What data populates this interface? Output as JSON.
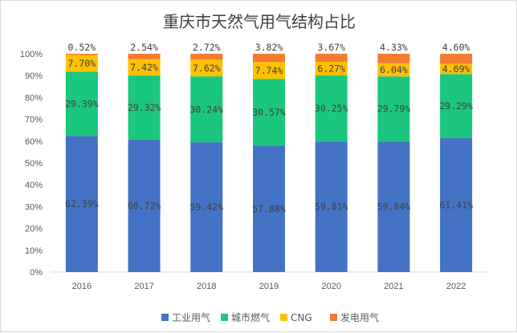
{
  "chart_data": {
    "type": "bar",
    "stacked": true,
    "title": "重庆市天然气用气结构占比",
    "categories": [
      "2016",
      "2017",
      "2018",
      "2019",
      "2020",
      "2021",
      "2022"
    ],
    "series": [
      {
        "name": "工业用气",
        "color": "#4472C4",
        "values": [
          62.39,
          60.72,
          59.42,
          57.88,
          59.81,
          59.84,
          61.41
        ],
        "labels": [
          "62.39%",
          "60.72%",
          "59.42%",
          "57.88%",
          "59.81%",
          "59.84%",
          "61.41%"
        ]
      },
      {
        "name": "城市燃气",
        "color": "#1AC77D",
        "values": [
          29.39,
          29.32,
          30.24,
          30.57,
          30.25,
          29.79,
          29.29
        ],
        "labels": [
          "29.39%",
          "29.32%",
          "30.24%",
          "30.57%",
          "30.25%",
          "29.79%",
          "29.29%"
        ]
      },
      {
        "name": "CNG",
        "color": "#FFC000",
        "values": [
          7.7,
          7.42,
          7.62,
          7.74,
          6.27,
          6.04,
          4.69
        ],
        "labels": [
          "7.70%",
          "7.42%",
          "7.62%",
          "7.74%",
          "6.27%",
          "6.04%",
          "4.69%"
        ]
      },
      {
        "name": "发电用气",
        "color": "#F47B30",
        "values": [
          0.52,
          2.54,
          2.72,
          3.82,
          3.67,
          4.33,
          4.6
        ],
        "labels": [
          "0.52%",
          "2.54%",
          "2.72%",
          "3.82%",
          "3.67%",
          "4.33%",
          "4.60%"
        ]
      }
    ],
    "yticks": [
      "0%",
      "10%",
      "20%",
      "30%",
      "40%",
      "50%",
      "60%",
      "70%",
      "80%",
      "90%",
      "100%"
    ],
    "ylim": [
      0,
      100
    ],
    "legend": "bottom",
    "grid": false
  }
}
